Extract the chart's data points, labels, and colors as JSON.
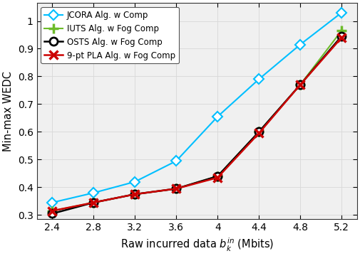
{
  "x": [
    2.4,
    2.8,
    3.2,
    3.6,
    4.0,
    4.4,
    4.8,
    5.2
  ],
  "jcora": [
    0.345,
    0.38,
    0.42,
    0.495,
    0.655,
    0.79,
    0.915,
    1.03
  ],
  "iuts": [
    0.315,
    0.345,
    0.375,
    0.395,
    0.44,
    0.6,
    0.77,
    0.965
  ],
  "osts": [
    0.305,
    0.345,
    0.375,
    0.395,
    0.44,
    0.6,
    0.77,
    0.945
  ],
  "pla": [
    0.315,
    0.345,
    0.375,
    0.395,
    0.435,
    0.595,
    0.77,
    0.94
  ],
  "series_labels": [
    "JCORA Alg. w Comp",
    "IUTS Alg. w Fog Comp",
    "OSTS Alg. w Fog Comp",
    "9-pt PLA Alg. w Fog Comp"
  ],
  "colors": [
    "#00BFFF",
    "#6DBB2A",
    "#000000",
    "#CC0000"
  ],
  "markers": [
    "D",
    "+",
    "o",
    "x"
  ],
  "markersizes": [
    7,
    10,
    8,
    9
  ],
  "linewidths": [
    1.5,
    1.5,
    1.8,
    1.8
  ],
  "xlabel": "Raw incurred data $b_k^{in}$ (Mbits)",
  "ylabel": "Min-max WEDC",
  "xlim": [
    2.25,
    5.35
  ],
  "ylim": [
    0.285,
    1.065
  ],
  "xticks": [
    2.4,
    2.8,
    3.2,
    3.6,
    4.0,
    4.4,
    4.8,
    5.2
  ],
  "yticks": [
    0.3,
    0.4,
    0.5,
    0.6,
    0.7,
    0.8,
    0.9,
    1.0
  ],
  "grid": true,
  "legend_loc": "upper left",
  "figsize": [
    5.05,
    3.6
  ],
  "dpi": 100,
  "axes_bg": "#f0f0f0",
  "fig_bg": "#ffffff"
}
